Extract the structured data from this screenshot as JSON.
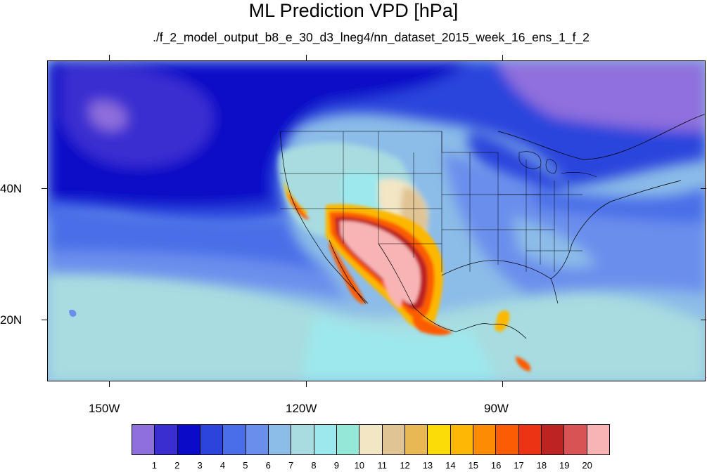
{
  "title": "ML Prediction VPD [hPa]",
  "subtitle": "./f_2_model_output_b8_e_30_d3_lneg4/nn_dataset_2015_week_16_ens_1_f_2",
  "longitude_labels": [
    "150W",
    "120W",
    "90W"
  ],
  "latitude_labels": [
    "40N",
    "20N"
  ],
  "colorbar": {
    "labels": [
      "1",
      "2",
      "3",
      "4",
      "5",
      "6",
      "7",
      "8",
      "9",
      "10",
      "11",
      "12",
      "13",
      "14",
      "15",
      "16",
      "17",
      "18",
      "19",
      "20"
    ],
    "colors": [
      "#8f6fdc",
      "#3a2ed0",
      "#0a0ac8",
      "#2c44dc",
      "#4a6ee8",
      "#6a8eec",
      "#8cbce8",
      "#a8dce0",
      "#9ce8ec",
      "#94e8d8",
      "#f2e6c4",
      "#e0c494",
      "#e8b854",
      "#fcdc08",
      "#fcb804",
      "#fc8c04",
      "#fc5c04",
      "#ec3414",
      "#bc2424",
      "#d85454",
      "#f8b4b4"
    ]
  }
}
